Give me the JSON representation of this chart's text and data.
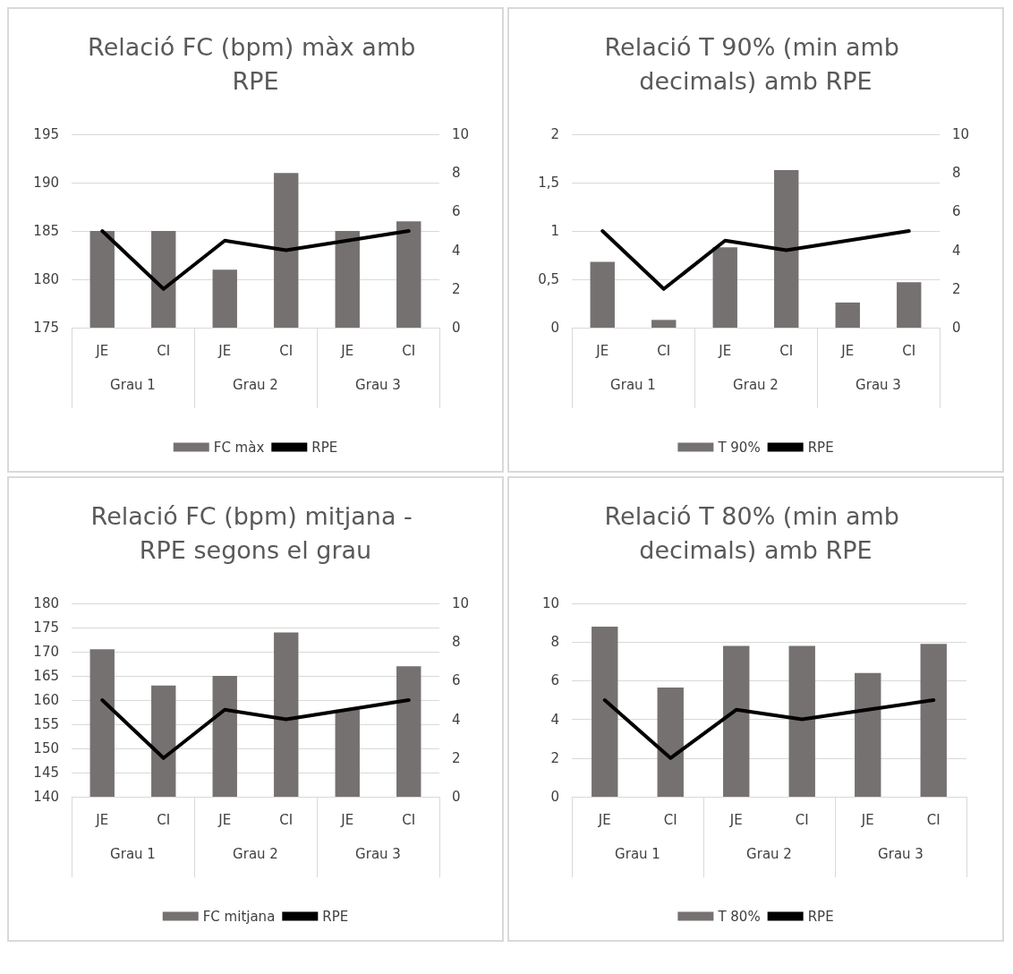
{
  "chart_data": [
    {
      "type": "bar",
      "title": "Relació FC (bpm) màx amb RPE",
      "categories": [
        "JE",
        "CI",
        "JE",
        "CI",
        "JE",
        "CI"
      ],
      "annotations": [
        "Grau 1",
        "Grau 2",
        "Grau 3"
      ],
      "series": [
        {
          "name": "FC màx",
          "color": "#767171",
          "values": [
            185,
            185,
            181,
            191,
            185,
            186
          ]
        },
        {
          "name": "RPE",
          "type": "line",
          "axis": "y2",
          "color": "#000000",
          "values": [
            5,
            2,
            4.5,
            4,
            4.5,
            5
          ]
        }
      ],
      "ylim": [
        175,
        195
      ],
      "yticks": [
        175,
        180,
        185,
        190,
        195
      ],
      "y2lim": [
        0,
        10
      ],
      "y2ticks": [
        0,
        2,
        4,
        6,
        8,
        10
      ],
      "grid": "y",
      "legend": "bottom",
      "marker": "none"
    },
    {
      "type": "bar",
      "title": "Relació T 90% (min amb decimals) amb RPE",
      "categories": [
        "JE",
        "CI",
        "JE",
        "CI",
        "JE",
        "CI"
      ],
      "annotations": [
        "Grau 1",
        "Grau 2",
        "Grau 3"
      ],
      "series": [
        {
          "name": "T 90%",
          "color": "#767171",
          "values": [
            0.68,
            0.08,
            0.83,
            1.63,
            0.26,
            0.47
          ]
        },
        {
          "name": "RPE",
          "type": "line",
          "axis": "y2",
          "color": "#000000",
          "values": [
            5,
            2,
            4.5,
            4,
            4.5,
            5
          ]
        }
      ],
      "ylim": [
        0,
        2
      ],
      "yticks": [
        0,
        {
          "value": 0.5,
          "label": "0,5"
        },
        1,
        {
          "value": 1.5,
          "label": "1,5"
        },
        2
      ],
      "y2lim": [
        0,
        10
      ],
      "y2ticks": [
        0,
        2,
        4,
        6,
        8,
        10
      ],
      "grid": "y",
      "legend": "bottom",
      "marker": "none"
    },
    {
      "type": "bar",
      "title": "Relació FC (bpm) mitjana - RPE segons el grau",
      "categories": [
        "JE",
        "CI",
        "JE",
        "CI",
        "JE",
        "CI"
      ],
      "annotations": [
        "Grau 1",
        "Grau 2",
        "Grau 3"
      ],
      "series": [
        {
          "name": "FC mitjana",
          "color": "#767171",
          "values": [
            170.5,
            163,
            165,
            174,
            158,
            167
          ]
        },
        {
          "name": "RPE",
          "type": "line",
          "axis": "y2",
          "color": "#000000",
          "values": [
            5,
            2,
            4.5,
            4,
            4.5,
            5
          ]
        }
      ],
      "ylim": [
        140,
        180
      ],
      "yticks": [
        140,
        145,
        150,
        155,
        160,
        165,
        170,
        175,
        180
      ],
      "y2lim": [
        0,
        10
      ],
      "y2ticks": [
        0,
        2,
        4,
        6,
        8,
        10
      ],
      "grid": "y",
      "legend": "bottom",
      "marker": "none"
    },
    {
      "type": "bar",
      "title": "Relació T 80% (min amb decimals) amb RPE",
      "categories": [
        "JE",
        "CI",
        "JE",
        "CI",
        "JE",
        "CI"
      ],
      "annotations": [
        "Grau 1",
        "Grau 2",
        "Grau 3"
      ],
      "series": [
        {
          "name": "T 80%",
          "color": "#767171",
          "values": [
            8.8,
            5.65,
            7.8,
            7.8,
            6.4,
            7.9
          ]
        },
        {
          "name": "RPE",
          "type": "line",
          "color": "#000000",
          "values": [
            5,
            2,
            4.5,
            4,
            4.5,
            5
          ]
        }
      ],
      "ylim": [
        0,
        10
      ],
      "yticks": [
        0,
        2,
        4,
        6,
        8,
        10
      ],
      "grid": "y",
      "legend": "bottom",
      "marker": "none"
    }
  ]
}
